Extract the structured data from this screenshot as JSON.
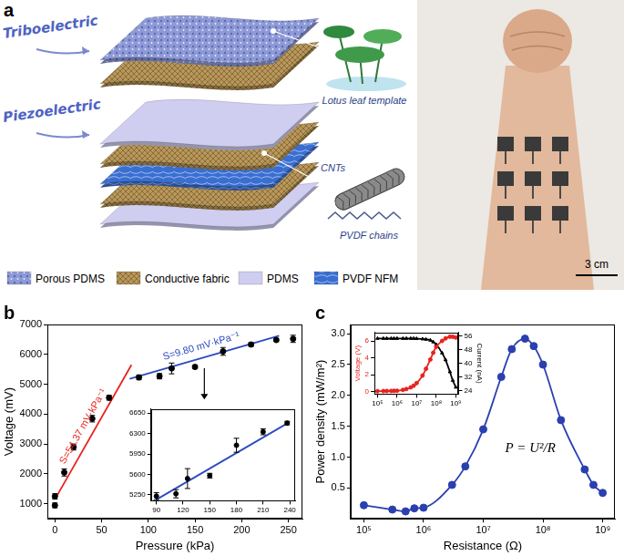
{
  "diagram": {
    "panel_label": "a",
    "devices": [
      {
        "name": "Triboelectric",
        "layers": [
          "Porous PDMS",
          "Conductive fabric"
        ]
      },
      {
        "name": "Piezoelectric",
        "layers": [
          "PDMS",
          "Conductive fabric",
          "PVDF NFM",
          "Conductive fabric",
          "PDMS"
        ]
      }
    ],
    "callouts": [
      "Lotus leaf template",
      "CNTs",
      "PVDF chains"
    ],
    "legend": [
      {
        "name": "Porous PDMS",
        "color": "#8e9ad8"
      },
      {
        "name": "Conductive fabric",
        "color": "#b8975a"
      },
      {
        "name": "PDMS",
        "color": "#cfcdf0"
      },
      {
        "name": "PVDF NFM",
        "color": "#3a6ed0"
      }
    ],
    "scale_bar": "3 cm"
  },
  "chart_data": [
    {
      "type": "scatter",
      "title": "b",
      "xlabel": "Pressure (kPa)",
      "ylabel": "Voltage (mV)",
      "xlim": [
        -8,
        265
      ],
      "ylim": [
        500,
        7000
      ],
      "xticks": [
        0,
        50,
        100,
        150,
        200,
        250
      ],
      "yticks": [
        1000,
        2000,
        3000,
        4000,
        5000,
        6000,
        7000
      ],
      "grid": false,
      "series": [
        {
          "type": "scatter",
          "color": "#000000",
          "marker": "circle",
          "x": [
            0,
            0,
            10,
            20,
            40,
            58,
            90,
            112,
            125,
            150,
            180,
            210,
            237,
            255
          ],
          "values": [
            950,
            1250,
            2050,
            2900,
            3850,
            4550,
            5230,
            5270,
            5530,
            5580,
            6100,
            6330,
            6480,
            6520
          ],
          "error": [
            80,
            90,
            120,
            100,
            110,
            80,
            80,
            90,
            180,
            60,
            130,
            60,
            40,
            120
          ]
        },
        {
          "type": "line",
          "color": "#e8231e",
          "x": [
            0,
            82
          ],
          "values": [
            1150,
            5650
          ],
          "annotation": "S=54.37 mV·kPa⁻¹"
        },
        {
          "type": "line",
          "color": "#2c4bc0",
          "x": [
            80,
            240
          ],
          "values": [
            5180,
            6620
          ],
          "annotation": "S=9.80 mV·kPa⁻¹"
        }
      ]
    },
    {
      "type": "scatter",
      "xlim": [
        84,
        246
      ],
      "ylim": [
        5150,
        6720
      ],
      "xticks": [
        90,
        120,
        150,
        180,
        210,
        240
      ],
      "yticks": [
        5250,
        5600,
        5950,
        6300,
        6650
      ],
      "grid": false,
      "series": [
        {
          "type": "scatter",
          "color": "#000000",
          "marker": "circle",
          "x": [
            90,
            112,
            125,
            150,
            180,
            210,
            237
          ],
          "values": [
            5230,
            5270,
            5530,
            5580,
            6100,
            6330,
            6480
          ],
          "error": [
            60,
            70,
            170,
            40,
            120,
            50,
            30
          ]
        },
        {
          "type": "line",
          "color": "#2c4bc0",
          "x": [
            90,
            240
          ],
          "values": [
            5170,
            6500
          ]
        }
      ]
    },
    {
      "type": "line",
      "title": "c",
      "xlabel": "Resistance (Ω)",
      "ylabel": "Power density (mW/m²)",
      "log": "x",
      "xlim": [
        60000,
        1600000000
      ],
      "ylim": [
        0,
        3.15
      ],
      "xticks": [
        {
          "value": 100000,
          "label": "10⁵"
        },
        {
          "value": 1000000,
          "label": "10⁶"
        },
        {
          "value": 10000000,
          "label": "10⁷"
        },
        {
          "value": 100000000,
          "label": "10⁸"
        },
        {
          "value": 1000000000,
          "label": "10⁹"
        }
      ],
      "yticks": [
        0.5,
        {
          "value": 1,
          "label": "1.0"
        },
        1.5,
        {
          "value": 2,
          "label": "2.0"
        },
        2.5,
        {
          "value": 3,
          "label": "3.0"
        }
      ],
      "grid": false,
      "annotation": "P = U²/R",
      "series": [
        {
          "color": "#2a3fb0",
          "marker": "circle",
          "x": [
            100000,
            300000,
            500000,
            700000,
            1000000,
            3000000,
            5000000,
            10000000,
            20000000,
            30000000,
            50000000,
            70000000,
            100000000,
            200000000,
            500000000,
            700000000,
            1000000000
          ],
          "values": [
            0.22,
            0.15,
            0.12,
            0.17,
            0.18,
            0.55,
            0.85,
            1.45,
            2.3,
            2.75,
            2.92,
            2.8,
            2.5,
            1.6,
            0.8,
            0.55,
            0.42
          ]
        }
      ]
    },
    {
      "type": "line",
      "ylabel": "Voltage (V)",
      "y2label": "Current (nA)",
      "log": "x",
      "xlim": [
        70000,
        1400000000
      ],
      "ylim": [
        -0.3,
        7
      ],
      "y2lim": [
        22,
        58
      ],
      "xticks": [
        {
          "value": 100000,
          "label": "10⁵"
        },
        {
          "value": 1000000,
          "label": "10⁶"
        },
        {
          "value": 10000000,
          "label": "10⁷"
        },
        {
          "value": 100000000,
          "label": "10⁸"
        },
        {
          "value": 1000000000,
          "label": "10⁹"
        }
      ],
      "yticks": [
        0,
        2,
        4,
        6
      ],
      "y2ticks": [
        24,
        32,
        40,
        48,
        56
      ],
      "grid": false,
      "series": [
        {
          "color": "#e8231e",
          "marker": "circle",
          "x": [
            100000,
            200000,
            300000,
            500000,
            700000,
            1000000,
            2000000,
            3000000,
            5000000,
            7000000,
            10000000,
            20000000,
            30000000,
            50000000,
            70000000,
            100000000,
            200000000,
            300000000,
            500000000,
            700000000,
            1000000000
          ],
          "values": [
            0.05,
            0.06,
            0.07,
            0.08,
            0.09,
            0.1,
            0.2,
            0.3,
            0.5,
            0.7,
            1.0,
            1.9,
            2.7,
            3.8,
            4.6,
            5.3,
            6.0,
            6.3,
            6.5,
            6.5,
            6.4
          ]
        },
        {
          "color": "#000000",
          "marker": "triangle",
          "axis": "y2",
          "x": [
            100000,
            200000,
            300000,
            500000,
            700000,
            1000000,
            2000000,
            3000000,
            5000000,
            7000000,
            10000000,
            20000000,
            30000000,
            50000000,
            70000000,
            100000000,
            200000000,
            300000000,
            500000000,
            700000000,
            1000000000
          ],
          "values": [
            54.5,
            54.5,
            54.5,
            54.5,
            54.5,
            54.5,
            54.5,
            54.5,
            54.5,
            54.5,
            54.4,
            54.2,
            54,
            53.5,
            52.5,
            51,
            46,
            42,
            35,
            30,
            26
          ]
        }
      ]
    }
  ]
}
